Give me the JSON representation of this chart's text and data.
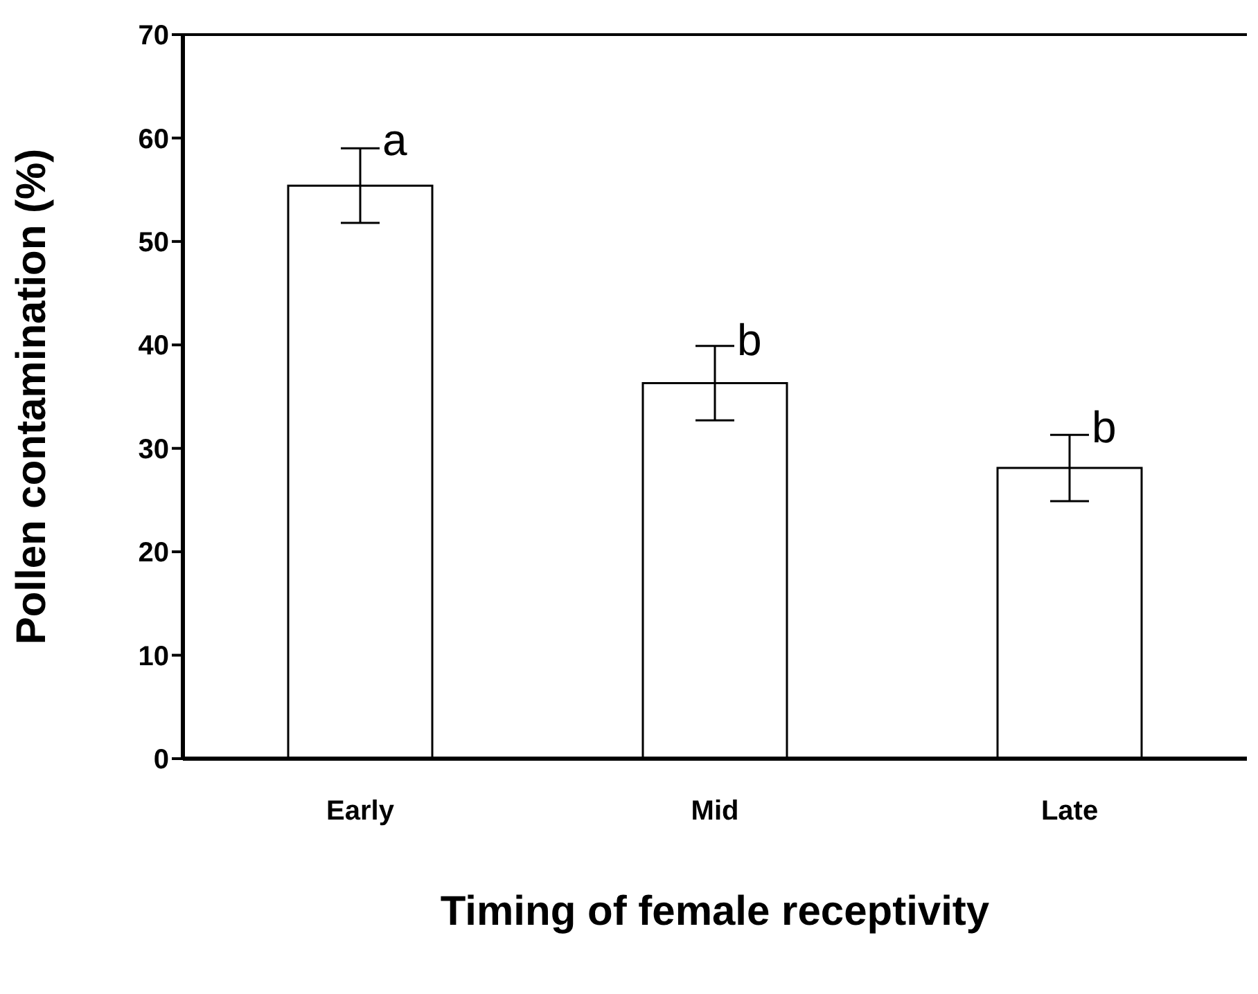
{
  "chart_data": {
    "type": "bar",
    "xlabel": "Timing of female receptivity",
    "ylabel": "Pollen contamination (%)",
    "categories": [
      "Early",
      "Mid",
      "Late"
    ],
    "values": [
      55.4,
      36.3,
      28.1
    ],
    "errors": [
      3.6,
      3.6,
      3.2
    ],
    "color": "#ffffff",
    "ylim": [
      0,
      70
    ],
    "yticks": [
      0,
      10,
      20,
      30,
      40,
      50,
      60,
      70
    ],
    "annotations": [
      {
        "text": "a",
        "x": "Early",
        "y": 59.1
      },
      {
        "text": "b",
        "x": "Mid",
        "y": 39.7
      },
      {
        "text": "b",
        "x": "Late",
        "y": 31.3
      }
    ],
    "grid": false,
    "legend": false
  }
}
